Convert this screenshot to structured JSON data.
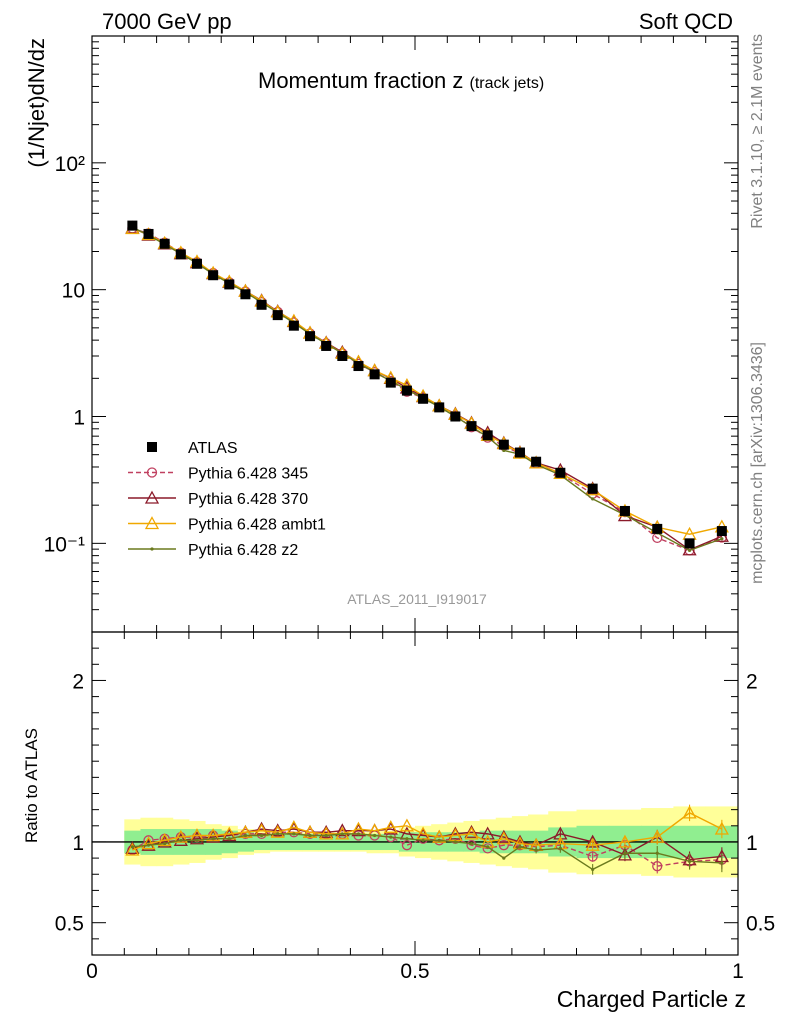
{
  "header": {
    "left": "7000 GeV pp",
    "right": "Soft QCD"
  },
  "side_labels": {
    "rivet": "Rivet 3.1.10, ≥ 2.1M events",
    "url": "mcplots.cern.ch [arXiv:1306.3436]"
  },
  "chart_data": [
    {
      "type": "line",
      "title": "Momentum fraction z",
      "title_suffix": "(track jets)",
      "ylabel": "(1/Njet)dN/dz",
      "xlabel": "",
      "xlim": [
        0,
        1
      ],
      "ylim": [
        0.02,
        1000
      ],
      "yscale": "log",
      "ytick_labels": [
        "10⁻¹",
        "1",
        "10",
        "10²"
      ],
      "ytick_values": [
        0.1,
        1,
        10,
        100
      ],
      "analysis_label": "ATLAS_2011_I919017",
      "legend_position": "bottom-left",
      "x": [
        0.0625,
        0.0875,
        0.1125,
        0.1375,
        0.1625,
        0.1875,
        0.2125,
        0.2375,
        0.2625,
        0.2875,
        0.3125,
        0.3375,
        0.3625,
        0.3875,
        0.4125,
        0.4375,
        0.4625,
        0.4875,
        0.5125,
        0.5375,
        0.5625,
        0.5875,
        0.6125,
        0.6375,
        0.6625,
        0.6875,
        0.725,
        0.775,
        0.825,
        0.875,
        0.925,
        0.975
      ],
      "series": [
        {
          "name": "ATLAS",
          "style": "data",
          "color": "#000000",
          "values": [
            32,
            27.5,
            23,
            19,
            16,
            13,
            11,
            9.2,
            7.6,
            6.3,
            5.2,
            4.3,
            3.6,
            3.0,
            2.5,
            2.15,
            1.85,
            1.6,
            1.38,
            1.18,
            1.0,
            0.84,
            0.71,
            0.6,
            0.52,
            0.44,
            0.36,
            0.27,
            0.18,
            0.13,
            0.1,
            0.125
          ]
        },
        {
          "name": "Pythia 6.428 345",
          "style": "circle-dashed",
          "color": "#c04060",
          "ratio": [
            0.95,
            1.01,
            1.02,
            1.03,
            1.03,
            1.04,
            1.04,
            1.05,
            1.05,
            1.06,
            1.06,
            1.05,
            1.05,
            1.05,
            1.04,
            1.04,
            1.03,
            0.98,
            1.02,
            1.01,
            1.02,
            0.98,
            0.96,
            0.98,
            0.98,
            0.97,
            0.98,
            0.91,
            0.98,
            0.85,
            0.88,
            0.89
          ]
        },
        {
          "name": "Pythia 6.428 370",
          "style": "triangle-solid",
          "color": "#8b1a2a",
          "ratio": [
            0.96,
            0.98,
            1.0,
            1.01,
            1.02,
            1.03,
            1.04,
            1.06,
            1.08,
            1.07,
            1.08,
            1.06,
            1.06,
            1.07,
            1.07,
            1.07,
            1.08,
            1.05,
            1.04,
            1.03,
            1.05,
            1.06,
            1.05,
            1.03,
            1.0,
            0.98,
            1.05,
            1.0,
            0.92,
            1.03,
            0.89,
            0.91
          ]
        },
        {
          "name": "Pythia 6.428 ambt1",
          "style": "triangle-solid",
          "color": "#f0a800",
          "ratio": [
            0.95,
            0.99,
            1.01,
            1.03,
            1.04,
            1.04,
            1.05,
            1.06,
            1.07,
            1.06,
            1.09,
            1.06,
            1.05,
            1.05,
            1.08,
            1.07,
            1.09,
            1.1,
            1.05,
            1.03,
            1.04,
            1.05,
            1.0,
            1.02,
            0.99,
            0.98,
            0.99,
            0.98,
            1.0,
            1.03,
            1.18,
            1.08
          ]
        },
        {
          "name": "Pythia 6.428 z2",
          "style": "dot-solid",
          "color": "#6b7a1e",
          "ratio": [
            0.97,
            0.98,
            0.99,
            1.01,
            1.01,
            1.02,
            1.02,
            1.04,
            1.04,
            1.05,
            1.05,
            1.04,
            1.04,
            1.05,
            1.05,
            1.04,
            1.03,
            1.02,
            1.01,
            1.01,
            1.0,
            0.99,
            0.97,
            0.9,
            0.97,
            0.95,
            0.96,
            0.83,
            0.93,
            0.93,
            0.88,
            0.87
          ]
        }
      ]
    },
    {
      "type": "line",
      "title": "",
      "ylabel": "Ratio to ATLAS",
      "xlabel": "Charged Particle z",
      "xlim": [
        0,
        1
      ],
      "ylim": [
        0.3,
        2.3
      ],
      "ytick_labels": [
        "0.5",
        "1",
        "2"
      ],
      "ytick_values": [
        0.5,
        1,
        2
      ],
      "xtick_labels": [
        "0",
        "0.5",
        "1"
      ],
      "xtick_values": [
        0,
        0.5,
        1
      ],
      "bands": {
        "green_half_width": [
          0.07,
          0.08,
          0.08,
          0.08,
          0.08,
          0.08,
          0.07,
          0.06,
          0.05,
          0.05,
          0.05,
          0.05,
          0.05,
          0.05,
          0.05,
          0.05,
          0.05,
          0.06,
          0.06,
          0.06,
          0.06,
          0.06,
          0.07,
          0.07,
          0.07,
          0.07,
          0.09,
          0.1,
          0.1,
          0.1,
          0.1,
          0.1
        ],
        "yellow_half_width": [
          0.14,
          0.15,
          0.15,
          0.14,
          0.13,
          0.11,
          0.1,
          0.08,
          0.07,
          0.06,
          0.06,
          0.06,
          0.06,
          0.06,
          0.06,
          0.07,
          0.07,
          0.09,
          0.1,
          0.11,
          0.12,
          0.13,
          0.14,
          0.15,
          0.16,
          0.17,
          0.19,
          0.2,
          0.2,
          0.21,
          0.22,
          0.22
        ],
        "green_color": "#90ee90",
        "yellow_color": "#ffff99"
      }
    }
  ]
}
